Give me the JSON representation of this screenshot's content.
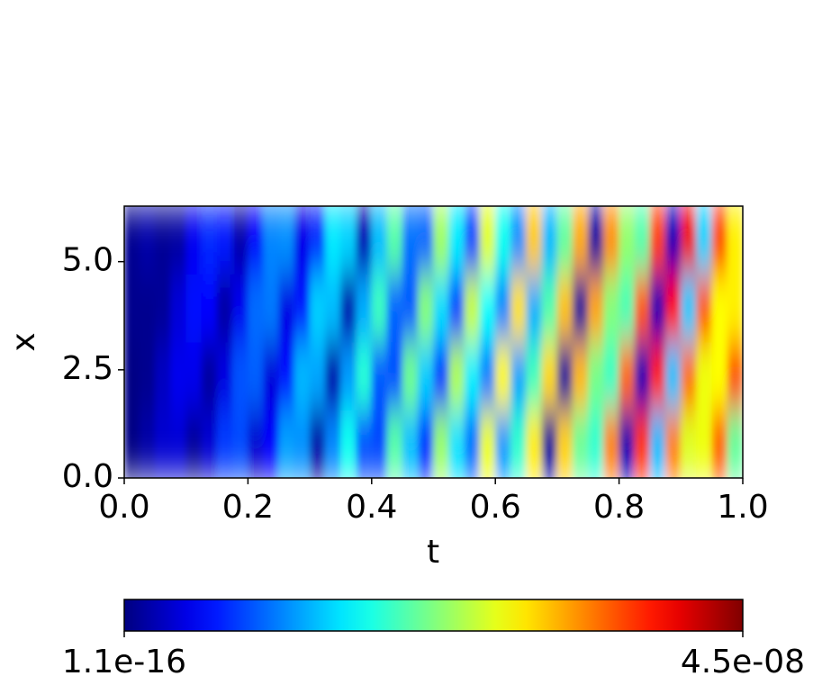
{
  "chart_data": {
    "type": "heatmap",
    "xlabel": "t",
    "ylabel": "x",
    "colormap": "jet",
    "xlim": [
      0,
      1
    ],
    "ylim": [
      0,
      6.2832
    ],
    "xticks": [
      {
        "value": 0,
        "label": "0.0"
      },
      0.2,
      0.4,
      0.6,
      0.8,
      {
        "value": 1,
        "label": "1.0"
      }
    ],
    "yticks": [
      {
        "value": 0,
        "label": "0.0"
      },
      2.5,
      {
        "value": 5,
        "label": "5.0"
      }
    ],
    "clim": [
      1.1e-16,
      4.5e-08
    ],
    "cticks": [
      1.1e-16,
      {
        "value": 4.5e-08,
        "label": "4.5e-08"
      }
    ],
    "xedges": [
      0,
      0.025,
      0.05,
      0.075,
      0.1,
      0.125,
      0.15,
      0.175,
      0.2,
      0.225,
      0.25,
      0.275,
      0.3,
      0.325,
      0.35,
      0.375,
      0.4,
      0.425,
      0.45,
      0.475,
      0.5,
      0.525,
      0.55,
      0.575,
      0.6,
      0.625,
      0.65,
      0.675,
      0.7,
      0.725,
      0.75,
      0.775,
      0.8,
      0.825,
      0.85,
      0.875,
      0.9,
      0.925,
      0.95,
      0.975,
      1
    ],
    "yedges": [
      0,
      1.5708,
      3.1416,
      4.7124,
      6.2832
    ],
    "z": [
      [
        2.6e-10,
        1.8e-09,
        3.6e-09,
        3.8e-09,
        1.2e-09,
        3.7e-09,
        8.2e-09,
        8.8e-09,
        3.6e-09,
        5.6e-09,
        1.27e-08,
        1.2e-08,
        1.8e-09,
        1.16e-08,
        1.75e-08,
        9e-09,
        8.7e-09,
        2.07e-08,
        1.41e-08,
        7.8e-09,
        2.36e-08,
        1.56e-08,
        1.07e-08,
        2.73e-08,
        1.25e-08,
        1.9e-08,
        2.89e-08,
        1.3e-09,
        3.01e-08,
        2.14e-08,
        1.9e-08,
        3.37e-08,
        2.2e-09,
        3.71e-08,
        1.39e-08,
        3.36e-08,
        2.67e-08,
        2.74e-08,
        3.49e-08,
        2.13e-08
      ],
      [
        2.5e-10,
        6.9e-10,
        2.9e-09,
        4.9e-09,
        4.8e-09,
        1.4e-09,
        4.3e-09,
        9.3e-09,
        9.8e-09,
        4e-09,
        6.1e-09,
        1.37e-08,
        1.29e-08,
        2e-09,
        1.24e-08,
        1.86e-08,
        9.5e-09,
        9.2e-09,
        2.18e-08,
        1.47e-08,
        8.2e-09,
        2.47e-08,
        1.62e-08,
        1.12e-08,
        2.83e-08,
        1.29e-08,
        1.98e-08,
        2.98e-08,
        1.3e-09,
        3.12e-08,
        2.21e-08,
        1.95e-08,
        3.47e-08,
        2.3e-09,
        3.81e-08,
        1.42e-08,
        3.44e-08,
        2.74e-08,
        2.81e-08,
        3.57e-08
      ],
      [
        6.5e-10,
        6.7e-10,
        1.1e-09,
        3.9e-09,
        6.2e-09,
        5.8e-09,
        1.6e-09,
        4.9e-09,
        1.04e-08,
        1.09e-08,
        4.4e-09,
        6.6e-09,
        1.48e-08,
        1.39e-08,
        2.1e-09,
        1.32e-08,
        1.96e-08,
        1e-08,
        9.7e-09,
        2.28e-08,
        1.54e-08,
        8.6e-09,
        2.57e-08,
        1.69e-08,
        1.16e-08,
        2.93e-08,
        1.34e-08,
        2.04e-08,
        3.08e-08,
        1.3e-09,
        3.21e-08,
        2.27e-08,
        2.01e-08,
        3.56e-08,
        2.3e-09,
        3.91e-08,
        1.46e-08,
        3.53e-08,
        2.81e-08,
        2.87e-08
      ],
      [
        8.4e-10,
        1.8e-09,
        1e-09,
        1.5e-09,
        5e-09,
        7.4e-09,
        6.7e-09,
        1.9e-09,
        5.5e-09,
        1.15e-08,
        1.19e-08,
        4.7e-09,
        7.1e-09,
        1.59e-08,
        1.49e-08,
        2.3e-09,
        1.39e-08,
        2.07e-08,
        1.06e-08,
        1.01e-08,
        2.39e-08,
        1.61e-08,
        8.9e-09,
        2.68e-08,
        1.75e-08,
        1.2e-08,
        3.04e-08,
        1.38e-08,
        2.11e-08,
        3.18e-08,
        1.4e-09,
        3.3e-08,
        2.34e-08,
        2.06e-08,
        3.66e-08,
        2.4e-09,
        4.01e-08,
        1.49e-08,
        3.61e-08,
        2.87e-08
      ]
    ]
  }
}
